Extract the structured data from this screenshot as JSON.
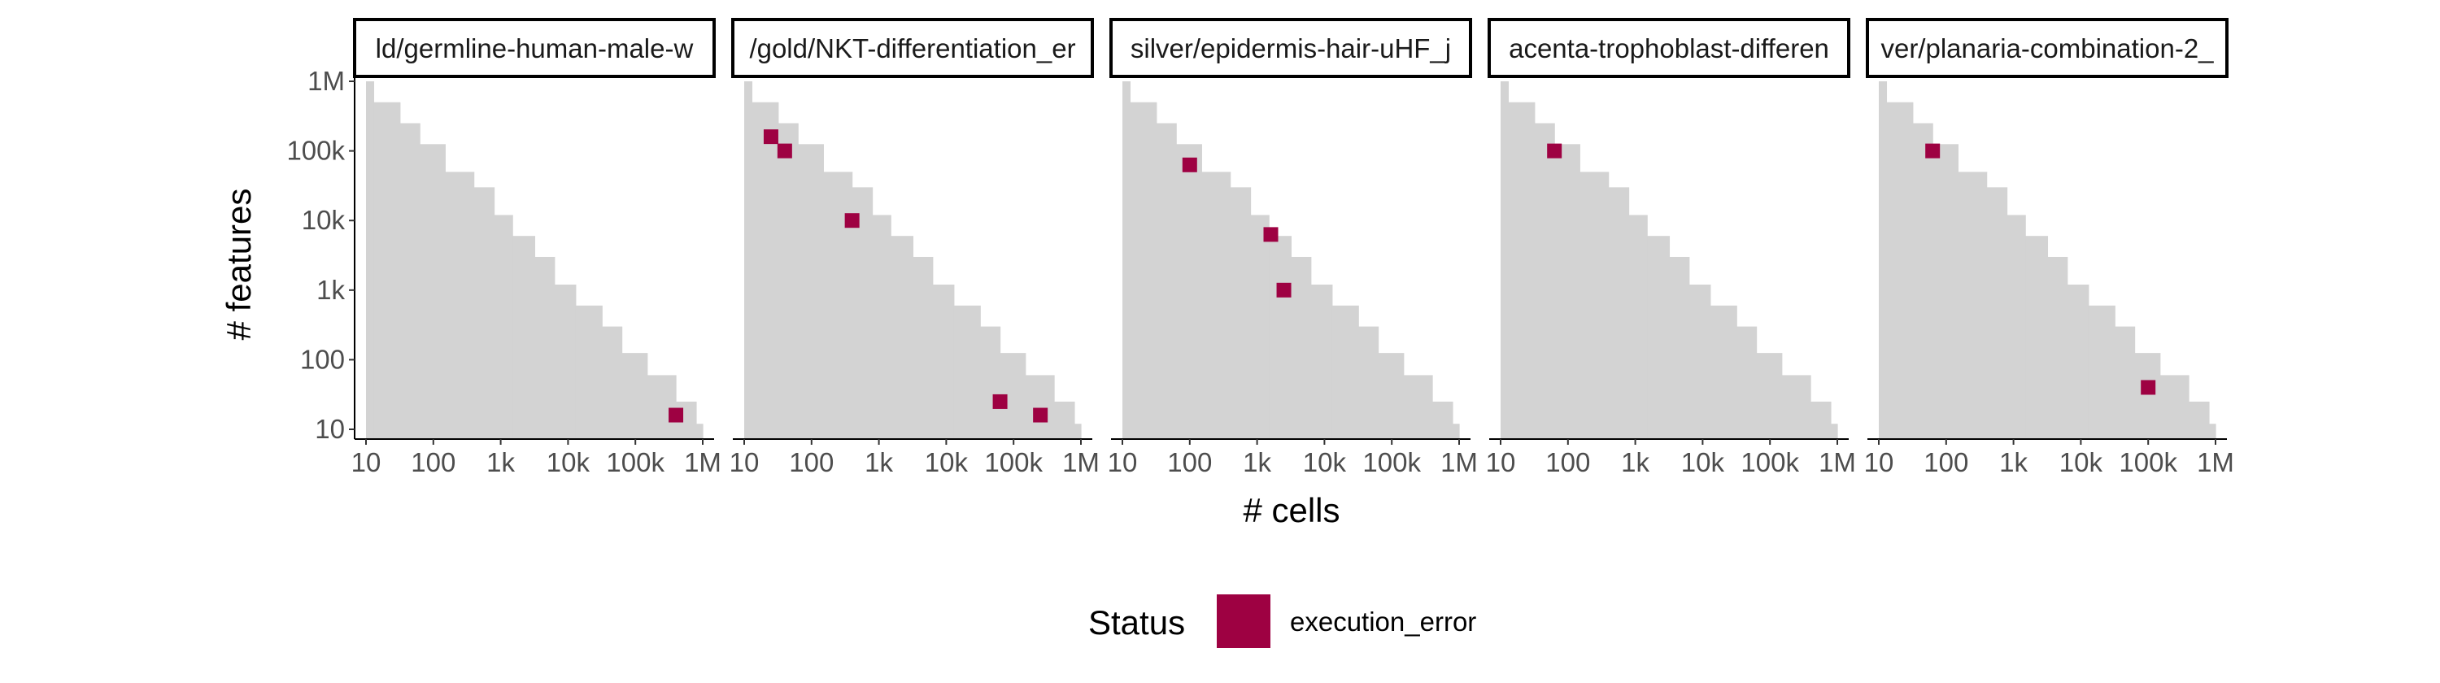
{
  "chart_data": {
    "type": "scatter",
    "xlabel": "# cells",
    "ylabel": "# features",
    "x_scale": "log10",
    "y_scale": "log10",
    "xlim": [
      10,
      1000000
    ],
    "ylim": [
      10,
      1000000
    ],
    "x_ticks": [
      {
        "value": 10,
        "label": "10"
      },
      {
        "value": 100,
        "label": "100"
      },
      {
        "value": 1000,
        "label": "1k"
      },
      {
        "value": 10000,
        "label": "10k"
      },
      {
        "value": 100000,
        "label": "100k"
      },
      {
        "value": 1000000,
        "label": "1M"
      }
    ],
    "y_ticks": [
      {
        "value": 10,
        "label": "10"
      },
      {
        "value": 100,
        "label": "100"
      },
      {
        "value": 1000,
        "label": "1k"
      },
      {
        "value": 10000,
        "label": "10k"
      },
      {
        "value": 100000,
        "label": "100k"
      },
      {
        "value": 1000000,
        "label": "1M"
      }
    ],
    "grid": false,
    "background_region": {
      "color": "#d3d3d3",
      "description": "staircase of feasible dataset sizes",
      "steps": [
        {
          "x_start": 10,
          "x_end": 13,
          "y_max": 1000000
        },
        {
          "x_start": 13,
          "x_end": 32,
          "y_max": 500000
        },
        {
          "x_start": 32,
          "x_end": 63,
          "y_max": 250000
        },
        {
          "x_start": 63,
          "x_end": 150,
          "y_max": 125000
        },
        {
          "x_start": 150,
          "x_end": 400,
          "y_max": 50000
        },
        {
          "x_start": 400,
          "x_end": 800,
          "y_max": 30000
        },
        {
          "x_start": 800,
          "x_end": 1500,
          "y_max": 12000
        },
        {
          "x_start": 1500,
          "x_end": 3200,
          "y_max": 6000
        },
        {
          "x_start": 3200,
          "x_end": 6300,
          "y_max": 3000
        },
        {
          "x_start": 6300,
          "x_end": 13000,
          "y_max": 1200
        },
        {
          "x_start": 13000,
          "x_end": 32000,
          "y_max": 600
        },
        {
          "x_start": 32000,
          "x_end": 63000,
          "y_max": 300
        },
        {
          "x_start": 63000,
          "x_end": 150000,
          "y_max": 125
        },
        {
          "x_start": 150000,
          "x_end": 400000,
          "y_max": 60
        },
        {
          "x_start": 400000,
          "x_end": 800000,
          "y_max": 25
        },
        {
          "x_start": 800000,
          "x_end": 1000000,
          "y_max": 12
        }
      ]
    },
    "panels": [
      {
        "label": "ld/germline-human-male-w",
        "points": [
          {
            "x": 400000,
            "y": 16,
            "status": "execution_error"
          }
        ]
      },
      {
        "label": "/gold/NKT-differentiation_er",
        "points": [
          {
            "x": 25,
            "y": 160000,
            "status": "execution_error"
          },
          {
            "x": 40,
            "y": 100000,
            "status": "execution_error"
          },
          {
            "x": 400,
            "y": 10000,
            "status": "execution_error"
          },
          {
            "x": 63000,
            "y": 25,
            "status": "execution_error"
          },
          {
            "x": 250000,
            "y": 16,
            "status": "execution_error"
          }
        ]
      },
      {
        "label": "silver/epidermis-hair-uHF_j",
        "points": [
          {
            "x": 100,
            "y": 63000,
            "status": "execution_error"
          },
          {
            "x": 1600,
            "y": 6300,
            "status": "execution_error"
          },
          {
            "x": 2500,
            "y": 1000,
            "status": "execution_error"
          }
        ]
      },
      {
        "label": "acenta-trophoblast-differen",
        "points": [
          {
            "x": 63,
            "y": 100000,
            "status": "execution_error"
          }
        ]
      },
      {
        "label": "ver/planaria-combination-2_",
        "points": [
          {
            "x": 63,
            "y": 100000,
            "status": "execution_error"
          },
          {
            "x": 100000,
            "y": 40,
            "status": "execution_error"
          }
        ]
      }
    ],
    "legend": {
      "title": "Status",
      "position": "bottom",
      "entries": [
        {
          "label": "execution_error",
          "color": "#9e0142"
        }
      ]
    }
  }
}
